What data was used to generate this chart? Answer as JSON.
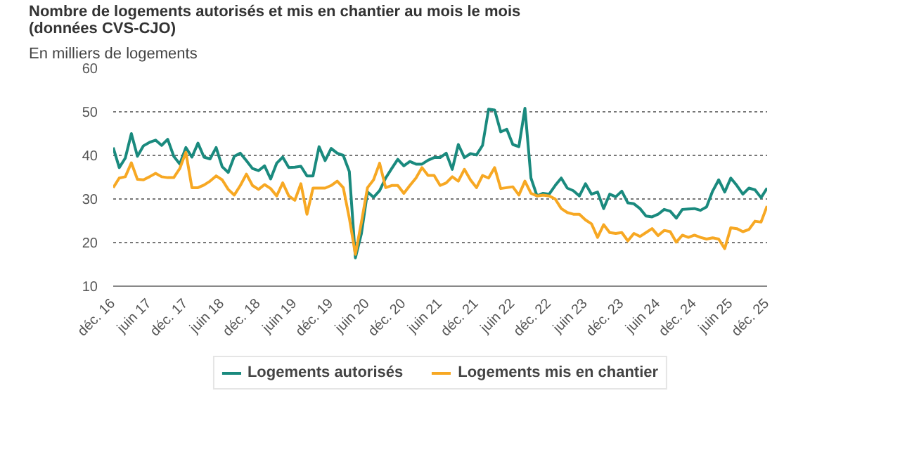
{
  "chart_data": {
    "type": "line",
    "title": "Nombre de logements autorisés et mis en chantier au mois le mois (données CVS-CJO)",
    "subtitle": "En milliers de logements",
    "x": [
      "2016-12",
      "2017-01",
      "2017-02",
      "2017-03",
      "2017-04",
      "2017-05",
      "2017-06",
      "2017-07",
      "2017-08",
      "2017-09",
      "2017-10",
      "2017-11",
      "2017-12",
      "2018-01",
      "2018-02",
      "2018-03",
      "2018-04",
      "2018-05",
      "2018-06",
      "2018-07",
      "2018-08",
      "2018-09",
      "2018-10",
      "2018-11",
      "2018-12",
      "2019-01",
      "2019-02",
      "2019-03",
      "2019-04",
      "2019-05",
      "2019-06",
      "2019-07",
      "2019-08",
      "2019-09",
      "2019-10",
      "2019-11",
      "2019-12",
      "2020-01",
      "2020-02",
      "2020-03",
      "2020-04",
      "2020-05",
      "2020-06",
      "2020-07",
      "2020-08",
      "2020-09",
      "2020-10",
      "2020-11",
      "2020-12",
      "2021-01",
      "2021-02",
      "2021-03",
      "2021-04",
      "2021-05",
      "2021-06",
      "2021-07",
      "2021-08",
      "2021-09",
      "2021-10",
      "2021-11",
      "2021-12",
      "2022-01",
      "2022-02",
      "2022-03",
      "2022-04",
      "2022-05",
      "2022-06",
      "2022-07",
      "2022-08",
      "2022-09",
      "2022-10",
      "2022-11",
      "2022-12",
      "2023-01",
      "2023-02",
      "2023-03",
      "2023-04",
      "2023-05",
      "2023-06",
      "2023-07",
      "2023-08",
      "2023-09",
      "2023-10",
      "2023-11",
      "2023-12",
      "2024-01",
      "2024-02",
      "2024-03",
      "2024-04",
      "2024-05",
      "2024-06",
      "2024-07",
      "2024-08",
      "2024-09",
      "2024-10",
      "2024-11",
      "2024-12",
      "2025-01",
      "2025-02",
      "2025-03",
      "2025-04",
      "2025-05",
      "2025-06",
      "2025-07",
      "2025-08",
      "2025-09",
      "2025-10",
      "2025-11",
      "2025-12"
    ],
    "series": [
      {
        "name": "Logements autorisés",
        "color": "#1a8a7e",
        "values": [
          41.8,
          37.2,
          39.4,
          45,
          39.8,
          42.2,
          43,
          43.5,
          42.3,
          43.7,
          39.8,
          38,
          41.8,
          39.6,
          42.8,
          39.6,
          39.2,
          41.8,
          37.4,
          36.1,
          39.8,
          40.5,
          38.8,
          37,
          36.5,
          37.6,
          34.6,
          38.2,
          39.6,
          37.2,
          37.3,
          37.5,
          35.3,
          35.3,
          42,
          38.8,
          41.6,
          40.5,
          40,
          36.3,
          16.5,
          22.1,
          31.6,
          30.4,
          31.9,
          34.8,
          37,
          39.1,
          37.6,
          38.6,
          38,
          38,
          38.9,
          39.5,
          39.5,
          40.5,
          36.8,
          42.5,
          39.5,
          40.4,
          40.1,
          42.3,
          50.6,
          50.4,
          45.4,
          46,
          42.5,
          42,
          50.8,
          34.8,
          30.7,
          31.3,
          31.1,
          33.1,
          34.8,
          32.5,
          31.9,
          30.7,
          33.5,
          31.1,
          31.6,
          27.8,
          31.1,
          30.5,
          31.8,
          29.1,
          28.9,
          27.8,
          26.1,
          25.9,
          26.5,
          27.6,
          27.2,
          25.6,
          27.6,
          27.7,
          27.8,
          27.4,
          28.2,
          31.8,
          34.4,
          31.6,
          34.8,
          33.1,
          31.1,
          32.5,
          32.1,
          30.3,
          32.5
        ]
      },
      {
        "name": "Logements mis en chantier",
        "color": "#f7a823",
        "values": [
          32.6,
          34.8,
          35.1,
          38.3,
          34.5,
          34.4,
          35.1,
          35.9,
          35.1,
          34.9,
          34.9,
          37,
          40.7,
          32.6,
          32.6,
          33.2,
          34.1,
          35.3,
          34.4,
          32.2,
          30.9,
          33.1,
          35.7,
          33.1,
          32.2,
          33.3,
          32.4,
          30.7,
          33.7,
          30.7,
          29.7,
          33.5,
          26.5,
          32.5,
          32.5,
          32.5,
          33.1,
          34.1,
          32.6,
          25.6,
          17.3,
          24.7,
          32.6,
          34.4,
          38.2,
          32.6,
          33.1,
          33.1,
          31.3,
          33.1,
          34.8,
          37.2,
          35.4,
          35.4,
          33.1,
          33.7,
          35.1,
          34.1,
          36.8,
          34.4,
          32.6,
          35.4,
          34.8,
          37.2,
          32.4,
          32.6,
          32.8,
          30.9,
          34.1,
          31.3,
          30.7,
          30.9,
          30.7,
          30,
          27.8,
          26.9,
          26.5,
          26.5,
          25.2,
          24.3,
          21.2,
          24.1,
          22.3,
          22.1,
          22.3,
          20.4,
          22.1,
          21.4,
          22.3,
          23.2,
          21.6,
          22.8,
          22.5,
          20.1,
          21.7,
          21.2,
          21.7,
          21.2,
          20.8,
          21.1,
          20.8,
          18.6,
          23.4,
          23.2,
          22.5,
          23,
          24.9,
          24.7,
          28.4
        ]
      }
    ],
    "xlim": [
      "2016-12",
      "2025-12"
    ],
    "xticks": [
      {
        "value": "2016-12",
        "label": "déc. 16"
      },
      {
        "value": "2017-06",
        "label": "juin 17"
      },
      {
        "value": "2017-12",
        "label": "déc. 17"
      },
      {
        "value": "2018-06",
        "label": "juin 18"
      },
      {
        "value": "2018-12",
        "label": "déc. 18"
      },
      {
        "value": "2019-06",
        "label": "juin 19"
      },
      {
        "value": "2019-12",
        "label": "déc. 19"
      },
      {
        "value": "2020-06",
        "label": "juin 20"
      },
      {
        "value": "2020-12",
        "label": "déc. 20"
      },
      {
        "value": "2021-06",
        "label": "juin 21"
      },
      {
        "value": "2021-12",
        "label": "déc. 21"
      },
      {
        "value": "2022-06",
        "label": "juin 22"
      },
      {
        "value": "2022-12",
        "label": "déc. 22"
      },
      {
        "value": "2023-06",
        "label": "juin 23"
      },
      {
        "value": "2023-12",
        "label": "déc. 23"
      },
      {
        "value": "2024-06",
        "label": "juin 24"
      },
      {
        "value": "2024-12",
        "label": "déc. 24"
      },
      {
        "value": "2025-06",
        "label": "juin 25"
      },
      {
        "value": "2025-12",
        "label": "déc. 25"
      }
    ],
    "ylim": [
      10,
      60
    ],
    "yticks": [
      10,
      20,
      30,
      40,
      50,
      60
    ],
    "grid": "y",
    "legend": "bottom",
    "marker": "none",
    "line_style": "solid"
  }
}
